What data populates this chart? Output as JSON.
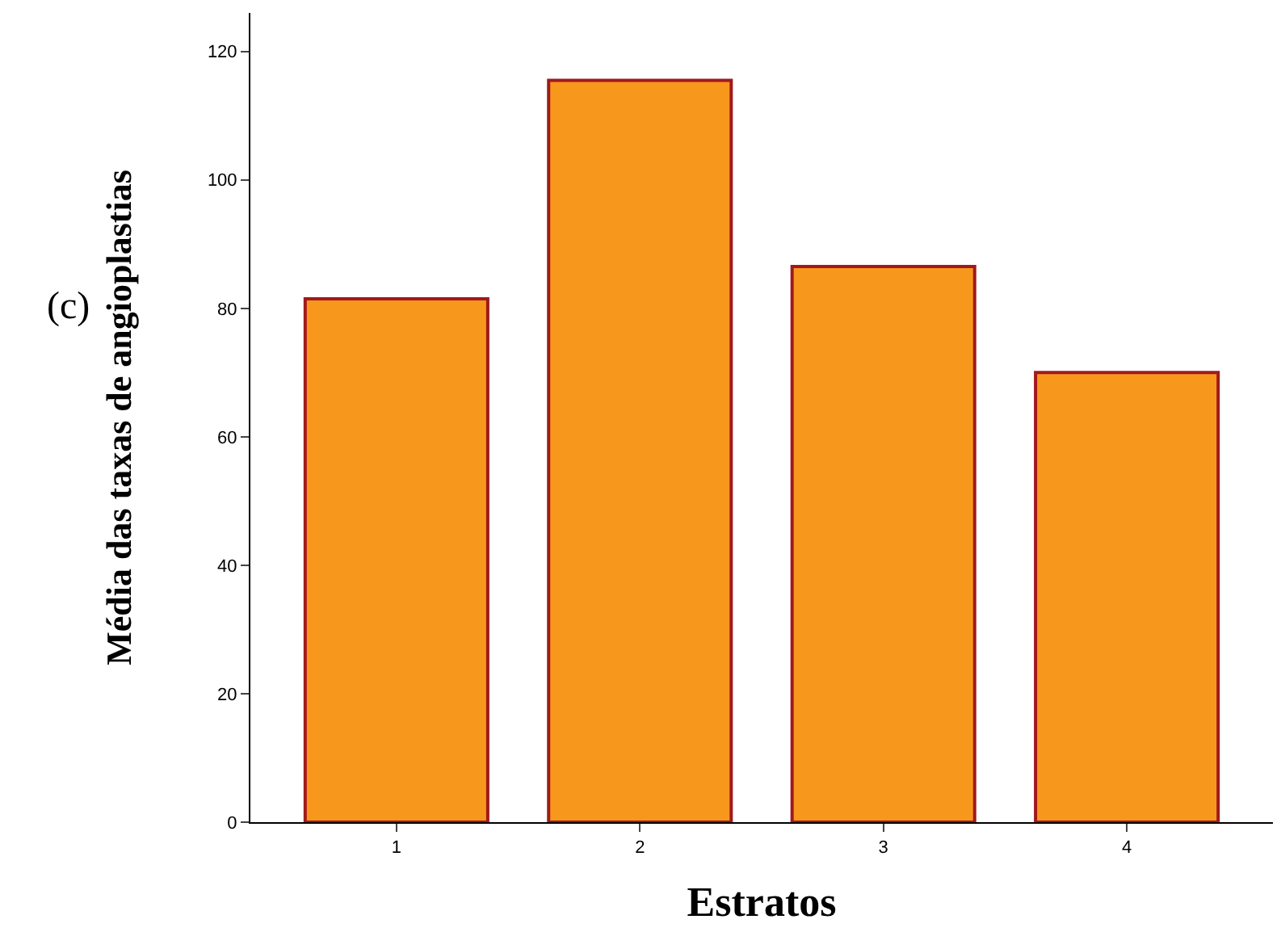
{
  "chart_data": {
    "type": "bar",
    "xlabel": "Estratos",
    "ylabel": "Média das taxas de angioplastias",
    "annotations": [
      "(c)"
    ],
    "categories": [
      "1",
      "2",
      "3",
      "4"
    ],
    "values": [
      81.5,
      115.5,
      86.5,
      70
    ],
    "color": "#f7981d",
    "ylim": [
      0,
      126
    ],
    "yticks": [
      0,
      20,
      40,
      60,
      80,
      100,
      120
    ],
    "grid": false,
    "legend": false
  }
}
